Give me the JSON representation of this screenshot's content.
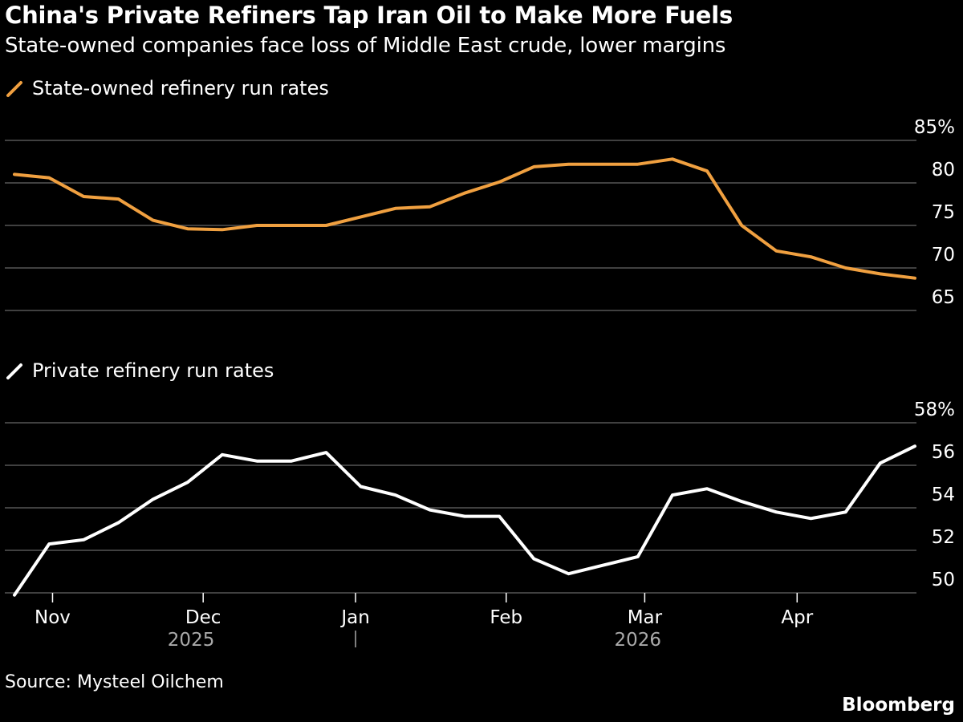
{
  "header": {
    "title": "China's Private Refiners Tap Iran Oil to Make More Fuels",
    "subtitle": "State-owned companies face loss of Middle East crude, lower margins"
  },
  "footer": {
    "source": "Source: Mysteel Oilchem",
    "brand": "Bloomberg"
  },
  "colors": {
    "background": "#000000",
    "state_line": "#f0a040",
    "private_line": "#ffffff",
    "grid": "#555555",
    "text": "#ffffff"
  },
  "chart_data": [
    {
      "type": "line",
      "legend": "State-owned refinery run rates",
      "series": [
        {
          "name": "State-owned refinery run rates",
          "values": [
            81.0,
            80.6,
            78.4,
            78.1,
            75.6,
            74.6,
            74.5,
            75.0,
            75.0,
            75.0,
            76.0,
            77.0,
            77.2,
            78.8,
            80.1,
            81.9,
            82.2,
            82.2,
            82.2,
            82.8,
            81.4,
            75.0,
            72.0,
            71.3,
            70.0,
            69.3,
            68.8
          ]
        }
      ],
      "x_index_range": [
        0,
        26
      ],
      "ylim": [
        65,
        85
      ],
      "yticks": [
        85,
        80,
        75,
        70,
        65
      ],
      "ytick_labels": [
        "85%",
        "80",
        "75",
        "70",
        "65"
      ],
      "grid": true
    },
    {
      "type": "line",
      "legend": "Private refinery run rates",
      "series": [
        {
          "name": "Private refinery run rates",
          "values": [
            49.9,
            52.3,
            52.5,
            53.3,
            54.4,
            55.2,
            56.5,
            56.2,
            56.2,
            56.6,
            55.0,
            54.6,
            53.9,
            53.6,
            53.6,
            51.6,
            50.9,
            51.3,
            51.7,
            54.6,
            54.9,
            54.3,
            53.8,
            53.5,
            53.8,
            56.1,
            56.9
          ]
        }
      ],
      "x_index_range": [
        0,
        26
      ],
      "ylim": [
        50,
        58
      ],
      "yticks": [
        58,
        56,
        54,
        52,
        50
      ],
      "ytick_labels": [
        "58%",
        "56",
        "54",
        "52",
        "50"
      ],
      "grid": true,
      "xticks": [
        {
          "label": "Nov",
          "index": 1.1
        },
        {
          "label": "Dec",
          "index": 5.45
        },
        {
          "label": "Jan",
          "index": 9.85
        },
        {
          "label": "Feb",
          "index": 14.2
        },
        {
          "label": "Mar",
          "index": 18.2
        },
        {
          "label": "Apr",
          "index": 22.6
        }
      ],
      "year_labels": [
        {
          "label": "2025",
          "index": 5.1
        },
        {
          "label": "2026",
          "index": 18.0
        }
      ],
      "year_divider_index": 9.85
    }
  ]
}
